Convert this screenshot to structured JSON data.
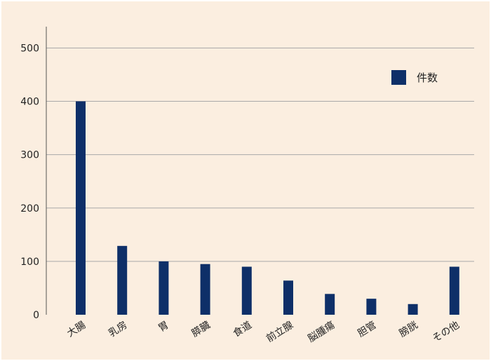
{
  "chart_data": {
    "type": "bar",
    "categories": [
      "大腸",
      "乳房",
      "胃",
      "膵臓",
      "食道",
      "前立腺",
      "脳腫瘍",
      "胆管",
      "膀胱",
      "その他"
    ],
    "series": [
      {
        "name": "件数",
        "values": [
          400,
          129,
          100,
          95,
          90,
          64,
          39,
          30,
          20,
          90
        ],
        "color": "#0e2f68"
      }
    ],
    "yticks": [
      "0",
      "100",
      "200",
      "300",
      "400",
      "500"
    ],
    "ylim": [
      0,
      540
    ],
    "grid": true,
    "legend_position": "top-right"
  }
}
